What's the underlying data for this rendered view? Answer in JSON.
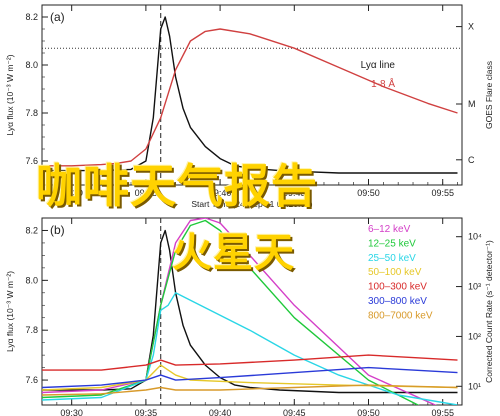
{
  "chart_data": [
    {
      "type": "line",
      "panel_label": "(a)",
      "ylabel": "Lyα flux (10⁻³ W m⁻²)",
      "y2label": "GOES Flare class",
      "xlabel": "Start Time (24-Sep-11 09:28:00)",
      "xlim": [
        "09:30",
        "09:55"
      ],
      "xticks": [
        "09:30",
        "09:35",
        "09:40",
        "09:45",
        "09:50",
        "09:55"
      ],
      "ylim": [
        7.5,
        8.25
      ],
      "yticks": [
        "7.6",
        "7.8",
        "8.0",
        "8.2"
      ],
      "y2ticks": [
        "X",
        "M",
        "C"
      ],
      "vline_time": "09:36",
      "hline": 8.07,
      "grid": false,
      "legend_position": "right",
      "series": [
        {
          "name": "Lyα line",
          "color": "#111111",
          "x": [
            28.0,
            30,
            32,
            34,
            35,
            35.5,
            36,
            36.3,
            36.6,
            37,
            37.5,
            38,
            39,
            40,
            41,
            42,
            44,
            46,
            48,
            50,
            52,
            54,
            55,
            56
          ],
          "y": [
            7.56,
            7.56,
            7.56,
            7.565,
            7.6,
            7.78,
            8.15,
            8.2,
            8.12,
            7.95,
            7.82,
            7.74,
            7.66,
            7.61,
            7.58,
            7.57,
            7.56,
            7.555,
            7.55,
            7.55,
            7.55,
            7.55,
            7.55,
            7.55
          ]
        },
        {
          "name": "1-8 Å",
          "color": "#d04040",
          "x": [
            28.0,
            30,
            32,
            33,
            34,
            35,
            36,
            37,
            38,
            39,
            40,
            42,
            45,
            48,
            51,
            54,
            56
          ],
          "y": [
            7.58,
            7.58,
            7.585,
            7.59,
            7.6,
            7.65,
            7.78,
            7.98,
            8.1,
            8.14,
            8.15,
            8.13,
            8.07,
            7.99,
            7.91,
            7.84,
            7.8
          ]
        }
      ]
    },
    {
      "type": "line",
      "panel_label": "(b)",
      "ylabel": "Lyα flux (10⁻³ W m⁻²)",
      "y2label": "Corrected Count Rate (s⁻¹ detector⁻¹)",
      "xlabel": "Start Time (24-Sep-11 09:28:00)",
      "xlim": [
        "09:30",
        "09:55"
      ],
      "xticks": [
        "09:30",
        "09:35",
        "09:40",
        "09:45",
        "09:50",
        "09:55"
      ],
      "ylim": [
        7.5,
        8.25
      ],
      "yticks": [
        "7.6",
        "7.8",
        "8.0",
        "8.2"
      ],
      "y2ticks": [
        "10⁴",
        "10³",
        "10²",
        "10¹"
      ],
      "vline_time": "09:36",
      "grid": false,
      "legend_position": "top-right",
      "series": [
        {
          "name": "Lyα",
          "color": "#111111",
          "x": [
            28,
            30,
            32,
            34,
            35,
            35.5,
            36,
            36.3,
            36.6,
            37,
            37.5,
            38,
            39,
            40,
            41,
            42,
            44,
            48,
            52,
            56
          ],
          "y": [
            7.56,
            7.56,
            7.56,
            7.565,
            7.6,
            7.78,
            8.15,
            8.2,
            8.12,
            7.95,
            7.82,
            7.74,
            7.66,
            7.61,
            7.58,
            7.57,
            7.56,
            7.55,
            7.55,
            7.55
          ]
        },
        {
          "name": "6–12 keV",
          "color": "#d43fc8",
          "x": [
            28,
            32,
            35,
            36,
            37,
            38,
            39,
            40,
            42,
            45,
            50,
            56
          ],
          "y": [
            7.55,
            7.56,
            7.6,
            7.9,
            8.15,
            8.24,
            8.25,
            8.23,
            8.1,
            7.9,
            7.62,
            7.46
          ]
        },
        {
          "name": "12–25 keV",
          "color": "#1fc93a",
          "x": [
            28,
            32,
            35,
            36,
            37,
            38,
            39,
            40,
            42,
            45,
            50,
            54,
            56
          ],
          "y": [
            7.53,
            7.54,
            7.6,
            7.9,
            8.12,
            8.22,
            8.24,
            8.2,
            8.05,
            7.85,
            7.6,
            7.48,
            7.44
          ]
        },
        {
          "name": "25–50 keV",
          "color": "#2ad6e6",
          "x": [
            28,
            32,
            35,
            35.5,
            36,
            36.5,
            37,
            38,
            40,
            42,
            45,
            48,
            52,
            56
          ],
          "y": [
            7.52,
            7.53,
            7.6,
            7.7,
            7.88,
            7.9,
            7.95,
            7.92,
            7.86,
            7.8,
            7.7,
            7.62,
            7.54,
            7.5
          ]
        },
        {
          "name": "50–100 keV",
          "color": "#e6c82a",
          "x": [
            28,
            32,
            35,
            36,
            37,
            38,
            42,
            48,
            56
          ],
          "y": [
            7.56,
            7.57,
            7.6,
            7.66,
            7.62,
            7.6,
            7.59,
            7.58,
            7.57
          ]
        },
        {
          "name": "100–300 keV",
          "color": "#d82a2a",
          "x": [
            28,
            32,
            35,
            36,
            37,
            40,
            45,
            50,
            53,
            56
          ],
          "y": [
            7.64,
            7.64,
            7.66,
            7.68,
            7.66,
            7.665,
            7.68,
            7.7,
            7.69,
            7.68
          ]
        },
        {
          "name": "300–800 keV",
          "color": "#2a3ad8",
          "x": [
            28,
            32,
            35,
            36,
            37,
            40,
            45,
            50,
            53,
            56
          ],
          "y": [
            7.57,
            7.58,
            7.6,
            7.62,
            7.6,
            7.61,
            7.63,
            7.65,
            7.64,
            7.63
          ]
        },
        {
          "name": "800–7000 keV",
          "color": "#d89a2a",
          "x": [
            28,
            32,
            35,
            36,
            37,
            40,
            45,
            50,
            53,
            56
          ],
          "y": [
            7.54,
            7.545,
            7.56,
            7.57,
            7.56,
            7.56,
            7.57,
            7.58,
            7.575,
            7.57
          ]
        }
      ]
    }
  ],
  "overlay": {
    "line1": "咖啡天气报告",
    "line2": "火星天"
  }
}
